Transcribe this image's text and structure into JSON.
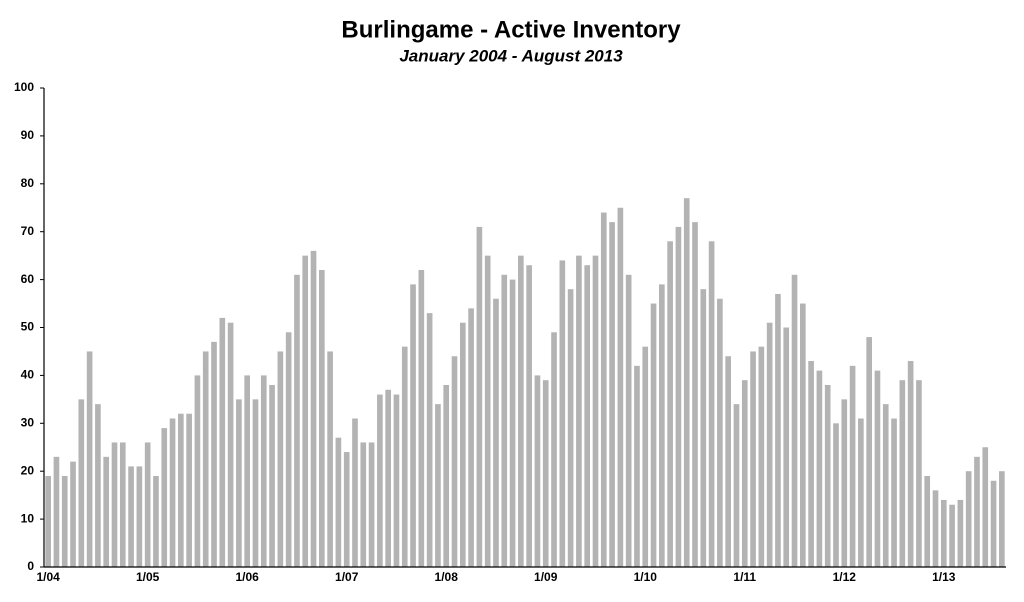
{
  "chart_data": {
    "type": "bar",
    "title": "Burlingame - Active Inventory",
    "subtitle": "January 2004 - August 2013",
    "categories": [
      "1/04",
      null,
      null,
      null,
      null,
      null,
      null,
      null,
      null,
      null,
      null,
      null,
      "1/05",
      null,
      null,
      null,
      null,
      null,
      null,
      null,
      null,
      null,
      null,
      null,
      "1/06",
      null,
      null,
      null,
      null,
      null,
      null,
      null,
      null,
      null,
      null,
      null,
      "1/07",
      null,
      null,
      null,
      null,
      null,
      null,
      null,
      null,
      null,
      null,
      null,
      "1/08",
      null,
      null,
      null,
      null,
      null,
      null,
      null,
      null,
      null,
      null,
      null,
      "1/09",
      null,
      null,
      null,
      null,
      null,
      null,
      null,
      null,
      null,
      null,
      null,
      "1/10",
      null,
      null,
      null,
      null,
      null,
      null,
      null,
      null,
      null,
      null,
      null,
      "1/11",
      null,
      null,
      null,
      null,
      null,
      null,
      null,
      null,
      null,
      null,
      null,
      "1/12",
      null,
      null,
      null,
      null,
      null,
      null,
      null,
      null,
      null,
      null,
      null,
      "1/13",
      null,
      null,
      null,
      null,
      null,
      null,
      null
    ],
    "values": [
      19,
      23,
      19,
      22,
      35,
      45,
      34,
      23,
      26,
      26,
      21,
      21,
      26,
      19,
      29,
      31,
      32,
      32,
      40,
      45,
      47,
      52,
      51,
      35,
      40,
      35,
      40,
      38,
      45,
      49,
      61,
      65,
      66,
      62,
      45,
      27,
      24,
      31,
      26,
      26,
      36,
      37,
      36,
      46,
      59,
      62,
      53,
      34,
      38,
      44,
      51,
      54,
      71,
      65,
      56,
      61,
      60,
      65,
      63,
      40,
      39,
      49,
      64,
      58,
      65,
      63,
      65,
      74,
      72,
      75,
      61,
      42,
      46,
      55,
      59,
      68,
      71,
      77,
      72,
      58,
      68,
      56,
      44,
      34,
      39,
      45,
      46,
      51,
      57,
      50,
      61,
      55,
      43,
      41,
      38,
      30,
      35,
      42,
      31,
      48,
      41,
      34,
      31,
      39,
      43,
      39,
      19,
      16,
      14,
      13,
      14,
      20,
      23,
      25,
      18,
      20
    ],
    "color": "#b3b3b3",
    "ylim": [
      0,
      100
    ],
    "yticks": [
      0,
      10,
      20,
      30,
      40,
      50,
      60,
      70,
      80,
      90,
      100
    ],
    "grid": false
  }
}
